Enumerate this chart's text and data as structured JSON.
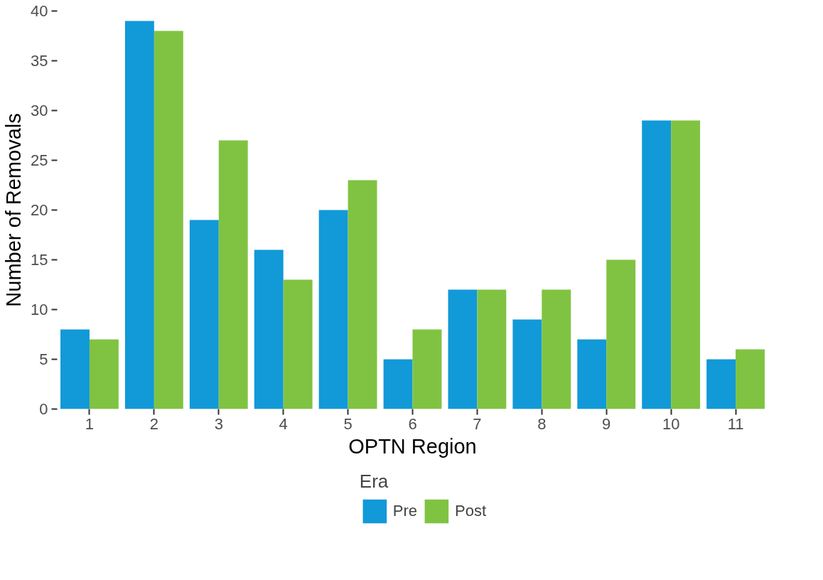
{
  "chart_data": {
    "type": "bar",
    "xlabel": "OPTN Region",
    "ylabel": "Number of Removals",
    "legend_title": "Era",
    "categories": [
      "1",
      "2",
      "3",
      "4",
      "5",
      "6",
      "7",
      "8",
      "9",
      "10",
      "11"
    ],
    "series": [
      {
        "name": "Pre",
        "color": "#1199d8",
        "values": [
          8,
          39,
          19,
          16,
          20,
          5,
          12,
          9,
          7,
          29,
          5
        ]
      },
      {
        "name": "Post",
        "color": "#80c342",
        "values": [
          7,
          38,
          27,
          13,
          23,
          8,
          12,
          12,
          15,
          29,
          6
        ]
      }
    ],
    "ylim": [
      0,
      40
    ],
    "yticks": [
      0,
      5,
      10,
      15,
      20,
      25,
      30,
      35,
      40
    ],
    "grid": false,
    "legend": "bottom"
  }
}
